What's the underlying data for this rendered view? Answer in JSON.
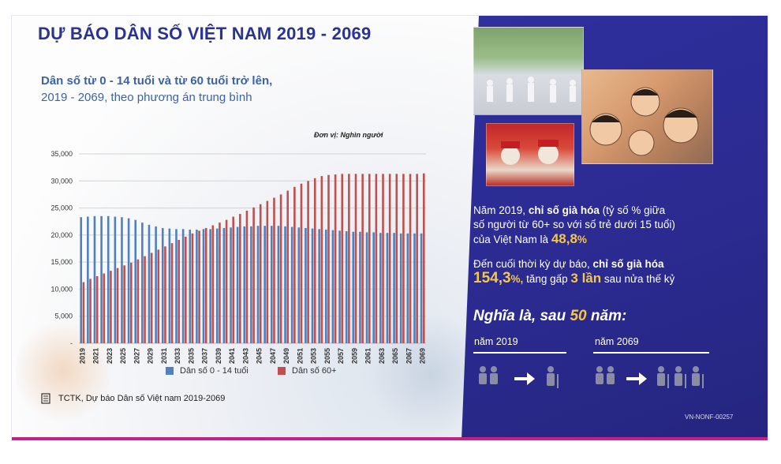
{
  "title": "DỰ BÁO DÂN SỐ VIỆT NAM 2019 - 2069",
  "subtitle_bold": "Dân số từ 0 - 14 tuổi và từ 60 tuổi trở lên,",
  "subtitle_rest": "2019 - 2069, theo phương án trung bình",
  "unit_label": "Đơn vị: Nghìn người",
  "colors": {
    "title": "#2a3391",
    "subtitle": "#3a63a8",
    "series_young": "#4f81bd",
    "series_old": "#c0504d",
    "panel": "#2a2a8f",
    "highlight": "#f6c744",
    "accent_bar": "#c0228a"
  },
  "chart_data": {
    "type": "bar",
    "ylim": [
      0,
      35000
    ],
    "yticks": [
      "-",
      "5,000",
      "10,000",
      "15,000",
      "20,000",
      "25,000",
      "30,000",
      "35,000"
    ],
    "x_start": 2019,
    "x_end": 2069,
    "xtick_labels": [
      "2019",
      "2021",
      "2023",
      "2025",
      "2027",
      "2029",
      "2031",
      "2033",
      "2035",
      "2037",
      "2039",
      "2041",
      "2043",
      "2045",
      "2047",
      "2049",
      "2051",
      "2053",
      "2055",
      "2057",
      "2059",
      "2061",
      "2063",
      "2065",
      "2067",
      "2069"
    ],
    "grid": true,
    "legend_position": "bottom",
    "series": [
      {
        "name": "Dân số 0 - 14 tuổi",
        "color": "#4f81bd",
        "values": [
          23300,
          23400,
          23500,
          23500,
          23500,
          23400,
          23300,
          23100,
          22800,
          22300,
          21900,
          21600,
          21300,
          21200,
          21100,
          21100,
          21000,
          21000,
          21100,
          21100,
          21200,
          21300,
          21400,
          21500,
          21600,
          21600,
          21700,
          21700,
          21700,
          21700,
          21600,
          21500,
          21400,
          21300,
          21200,
          21100,
          21000,
          20900,
          20800,
          20700,
          20600,
          20600,
          20500,
          20500,
          20400,
          20400,
          20400,
          20300,
          20300,
          20300,
          20300
        ]
      },
      {
        "name": "Dân số 60+",
        "color": "#c0504d",
        "values": [
          11300,
          11900,
          12400,
          12900,
          13400,
          13900,
          14400,
          14900,
          15500,
          16100,
          16700,
          17300,
          17900,
          18500,
          19100,
          19700,
          20300,
          20800,
          21300,
          21800,
          22300,
          22800,
          23400,
          23900,
          24500,
          25100,
          25700,
          26300,
          26900,
          27500,
          28200,
          28900,
          29500,
          30000,
          30500,
          30900,
          31100,
          31200,
          31300,
          31300,
          31300,
          31300,
          31300,
          31300,
          31300,
          31300,
          31300,
          31300,
          31300,
          31300,
          31400
        ]
      }
    ]
  },
  "source_text": "TCTK, Dự báo Dân số Việt nam 2019-2069",
  "info": {
    "p1_a": "Năm 2019,",
    "p1_b": "chỉ số già hóa",
    "p1_c": "(tỷ số % giữa",
    "p1_d": "số người từ 60+ so với số trẻ dưới 15 tuổi)",
    "p1_e": "của Việt Nam là",
    "p1_val": "48,8",
    "p1_pct": "%",
    "p2_a": "Đến cuối thời kỳ dự báo,",
    "p2_b": "chỉ số già hóa",
    "p2_val": "154,3",
    "p2_pct": "%,",
    "p2_c": "tăng gấp",
    "p2_times": "3 lần",
    "p2_d": "sau nửa thế kỷ"
  },
  "meaning": {
    "prefix": "Nghĩa là, sau",
    "years": "50",
    "suffix": "năm:"
  },
  "compare": {
    "left_year": "năm 2019",
    "right_year": "năm 2069"
  },
  "doc_code": "VN-NONF-00257"
}
